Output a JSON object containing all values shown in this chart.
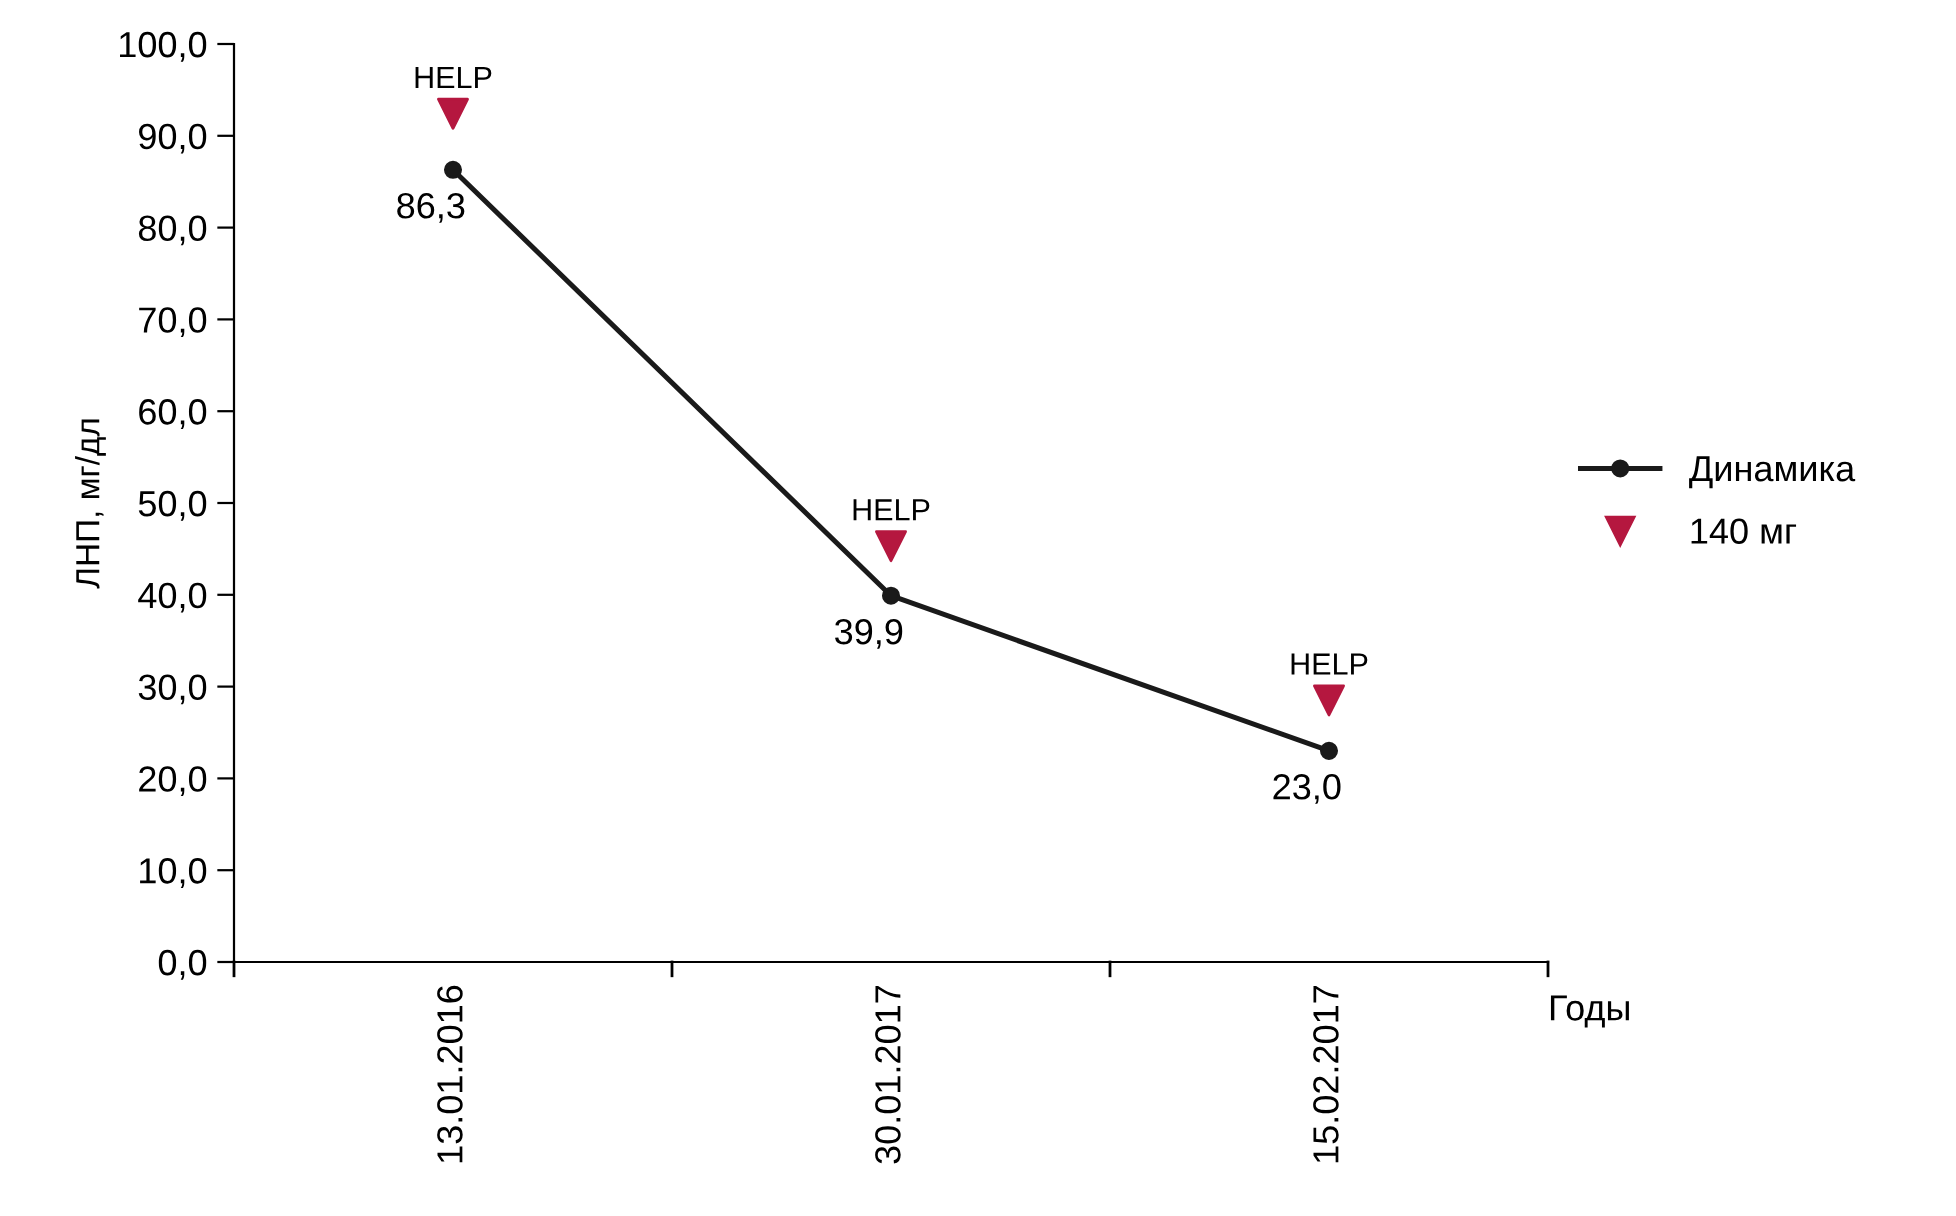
{
  "chart_data": {
    "type": "line",
    "ylabel": "ЛНП, мг/дл",
    "xlabel": "Годы",
    "categories": [
      "13.01.2016",
      "30.01.2017",
      "15.02.2017"
    ],
    "series": [
      {
        "name": "Динамика",
        "color": "#1a1a1a",
        "marker": "circle",
        "values": [
          86.3,
          39.9,
          23.0
        ],
        "value_labels": [
          "86,3",
          "39,9",
          "23,0"
        ]
      },
      {
        "name": "140 мг",
        "type": "scatter",
        "color": "#b5173f",
        "marker": "triangle",
        "values": [
          92.4,
          45.3,
          28.5
        ]
      }
    ],
    "annotations": [
      {
        "text": "HELP",
        "x": "13.01.2016",
        "y": 92.4
      },
      {
        "text": "HELP",
        "x": "30.01.2017",
        "y": 45.3
      },
      {
        "text": "HELP",
        "x": "15.02.2017",
        "y": 28.5
      }
    ],
    "ylim": [
      0,
      100
    ],
    "yticks": [
      {
        "value": 0,
        "label": "0,0"
      },
      {
        "value": 10,
        "label": "10,0"
      },
      {
        "value": 20,
        "label": "20,0"
      },
      {
        "value": 30,
        "label": "30,0"
      },
      {
        "value": 40,
        "label": "40,0"
      },
      {
        "value": 50,
        "label": "50,0"
      },
      {
        "value": 60,
        "label": "60,0"
      },
      {
        "value": 70,
        "label": "70,0"
      },
      {
        "value": 80,
        "label": "80,0"
      },
      {
        "value": 90,
        "label": "90,0"
      },
      {
        "value": 100,
        "label": "100,0"
      }
    ],
    "grid": false,
    "legend": "right"
  }
}
